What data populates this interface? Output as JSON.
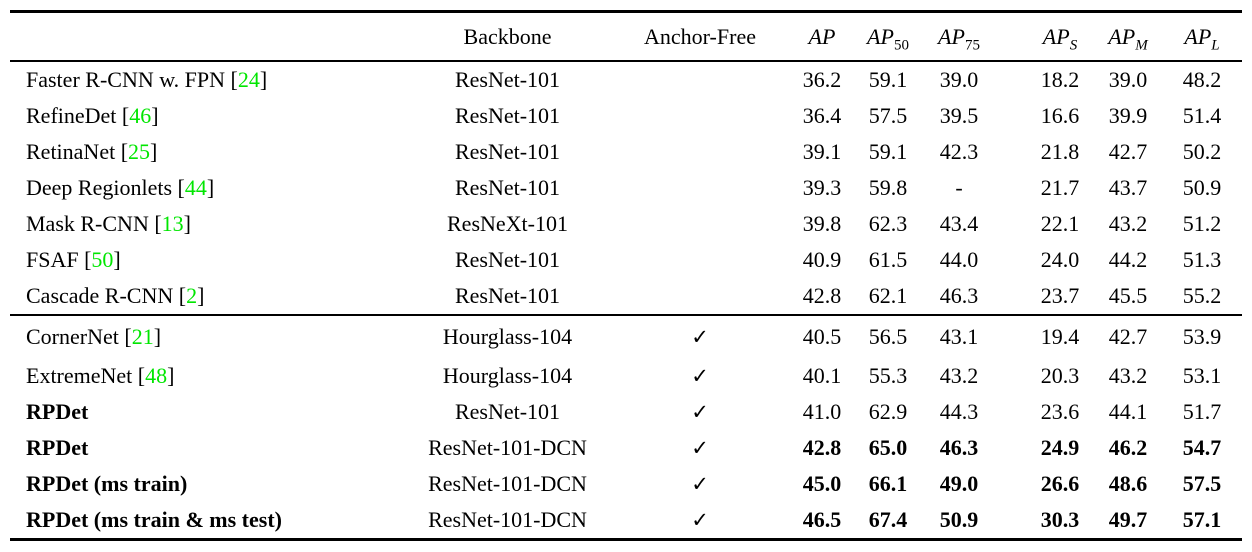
{
  "table": {
    "colors": {
      "citation_green": "#00e600",
      "text": "#000000",
      "rule": "#000000"
    },
    "header": {
      "method": "",
      "backbone": "Backbone",
      "anchor_free": "Anchor-Free",
      "ap_cols": [
        {
          "main": "AP",
          "sub": ""
        },
        {
          "main": "AP",
          "sub": "50"
        },
        {
          "main": "AP",
          "sub": "75"
        },
        {
          "main": "AP",
          "sub": "S"
        },
        {
          "main": "AP",
          "sub": "M"
        },
        {
          "main": "AP",
          "sub": "L"
        }
      ]
    },
    "rows": [
      {
        "m1": "Faster R-CNN w. FPN [",
        "cite": "24",
        "m2": "]",
        "backbone": "ResNet-101",
        "check": "",
        "ap": "36.2",
        "ap50": "59.1",
        "ap75": "39.0",
        "aps": "18.2",
        "apm": "39.0",
        "apl": "48.2"
      },
      {
        "m1": "RefineDet [",
        "cite": "46",
        "m2": "]",
        "backbone": "ResNet-101",
        "check": "",
        "ap": "36.4",
        "ap50": "57.5",
        "ap75": "39.5",
        "aps": "16.6",
        "apm": "39.9",
        "apl": "51.4"
      },
      {
        "m1": "RetinaNet [",
        "cite": "25",
        "m2": "]",
        "backbone": "ResNet-101",
        "check": "",
        "ap": "39.1",
        "ap50": "59.1",
        "ap75": "42.3",
        "aps": "21.8",
        "apm": "42.7",
        "apl": "50.2"
      },
      {
        "m1": "Deep Regionlets [",
        "cite": "44",
        "m2": "]",
        "backbone": "ResNet-101",
        "check": "",
        "ap": "39.3",
        "ap50": "59.8",
        "ap75": "-",
        "aps": "21.7",
        "apm": "43.7",
        "apl": "50.9"
      },
      {
        "m1": "Mask R-CNN [",
        "cite": "13",
        "m2": "]",
        "backbone": "ResNeXt-101",
        "check": "",
        "ap": "39.8",
        "ap50": "62.3",
        "ap75": "43.4",
        "aps": "22.1",
        "apm": "43.2",
        "apl": "51.2"
      },
      {
        "m1": "FSAF [",
        "cite": "50",
        "m2": "]",
        "backbone": "ResNet-101",
        "check": "",
        "ap": "40.9",
        "ap50": "61.5",
        "ap75": "44.0",
        "aps": "24.0",
        "apm": "44.2",
        "apl": "51.3"
      },
      {
        "m1": "Cascade R-CNN [",
        "cite": "2",
        "m2": "]",
        "backbone": "ResNet-101",
        "check": "",
        "ap": "42.8",
        "ap50": "62.1",
        "ap75": "46.3",
        "aps": "23.7",
        "apm": "45.5",
        "apl": "55.2"
      },
      {
        "m1": "CornerNet [",
        "cite": "21",
        "m2": "]",
        "backbone": "Hourglass-104",
        "check": "✓",
        "ap": "40.5",
        "ap50": "56.5",
        "ap75": "43.1",
        "aps": "19.4",
        "apm": "42.7",
        "apl": "53.9"
      },
      {
        "m1": "ExtremeNet [",
        "cite": "48",
        "m2": "]",
        "backbone": "Hourglass-104",
        "check": "✓",
        "ap": "40.1",
        "ap50": "55.3",
        "ap75": "43.2",
        "aps": "20.3",
        "apm": "43.2",
        "apl": "53.1"
      },
      {
        "m1": "RPDet",
        "cite": "",
        "m2": "",
        "backbone": "ResNet-101",
        "check": "✓",
        "ap": "41.0",
        "ap50": "62.9",
        "ap75": "44.3",
        "aps": "23.6",
        "apm": "44.1",
        "apl": "51.7"
      },
      {
        "m1": "RPDet",
        "cite": "",
        "m2": "",
        "backbone": "ResNet-101-DCN",
        "check": "✓",
        "ap": "42.8",
        "ap50": "65.0",
        "ap75": "46.3",
        "aps": "24.9",
        "apm": "46.2",
        "apl": "54.7"
      },
      {
        "m1": "RPDet (ms train)",
        "cite": "",
        "m2": "",
        "backbone": "ResNet-101-DCN",
        "check": "✓",
        "ap": "45.0",
        "ap50": "66.1",
        "ap75": "49.0",
        "aps": "26.6",
        "apm": "48.6",
        "apl": "57.5"
      },
      {
        "m1": "RPDet (ms train & ms test)",
        "cite": "",
        "m2": "",
        "backbone": "ResNet-101-DCN",
        "check": "✓",
        "ap": "46.5",
        "ap50": "67.4",
        "ap75": "50.9",
        "aps": "30.3",
        "apm": "49.7",
        "apl": "57.1"
      }
    ]
  }
}
